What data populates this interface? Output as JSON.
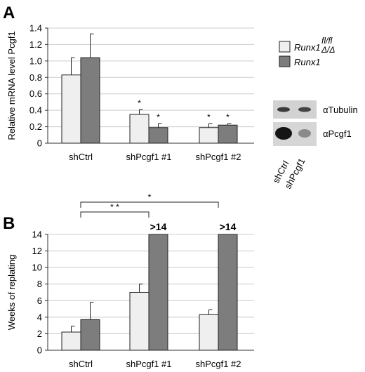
{
  "colors": {
    "light": "#efefef",
    "dark": "#7d7d7d",
    "stroke": "#222222",
    "grid": "#cccccc"
  },
  "panels": {
    "a_letter": "A",
    "b_letter": "B"
  },
  "chart_data": [
    {
      "type": "bar",
      "panel": "A",
      "ylabel": "Relative mRNA level Pcgf1",
      "ylim": [
        0,
        1.4
      ],
      "yticks": [
        "0",
        "0.2",
        "0.4",
        "0.6",
        "0.8",
        "1.0",
        "1.2",
        "1.4"
      ],
      "ytick_values": [
        0,
        0.2,
        0.4,
        0.6,
        0.8,
        1.0,
        1.2,
        1.4
      ],
      "categories": [
        "shCtrl",
        "shPcgf1 #1",
        "shPcgf1 #2"
      ],
      "grid": true,
      "legend_position": "right",
      "series": [
        {
          "name": "Runx1 fl/fl",
          "legend_main": "Runx1",
          "legend_sup": "fl/fl",
          "values": [
            0.83,
            0.35,
            0.19
          ],
          "errors": [
            0.21,
            0.06,
            0.05
          ],
          "color_key": "light"
        },
        {
          "name": "Runx1 Δ/Δ",
          "legend_main": "Runx1",
          "legend_sup": "Δ/Δ",
          "values": [
            1.04,
            0.19,
            0.22
          ],
          "errors": [
            0.29,
            0.05,
            0.02
          ],
          "color_key": "dark"
        }
      ],
      "significance": [
        {
          "category": 1,
          "series": 0,
          "label": "*"
        },
        {
          "category": 1,
          "series": 1,
          "label": "*"
        },
        {
          "category": 2,
          "series": 0,
          "label": "*"
        },
        {
          "category": 2,
          "series": 1,
          "label": "*"
        }
      ]
    },
    {
      "type": "bar",
      "panel": "B",
      "ylabel": "Weeks of replating",
      "ylim": [
        0,
        14
      ],
      "yticks": [
        "0",
        "2",
        "4",
        "6",
        "8",
        "10",
        "12",
        "14"
      ],
      "ytick_values": [
        0,
        2,
        4,
        6,
        8,
        10,
        12,
        14
      ],
      "categories": [
        "shCtrl",
        "shPcgf1 #1",
        "shPcgf1 #2"
      ],
      "grid": true,
      "series": [
        {
          "name": "Runx1 fl/fl",
          "values": [
            2.2,
            7.0,
            4.3
          ],
          "errors": [
            0.7,
            1.0,
            0.6
          ],
          "color_key": "light"
        },
        {
          "name": "Runx1 Δ/Δ",
          "values": [
            3.7,
            14,
            14
          ],
          "errors": [
            2.1,
            0,
            0
          ],
          "color_key": "dark"
        }
      ],
      "bar_labels": [
        {
          "category": 1,
          "series": 1,
          "label": ">14"
        },
        {
          "category": 2,
          "series": 1,
          "label": ">14"
        }
      ],
      "brackets": [
        {
          "from_category": 0,
          "to_category": 1,
          "label": "* *"
        },
        {
          "from_category": 0,
          "to_category": 2,
          "label": "*"
        }
      ]
    }
  ],
  "western_blot": {
    "labels": [
      "αTubulin",
      "αPcgf1"
    ],
    "lanes": [
      "shCtrl",
      "shPcgf1"
    ]
  }
}
